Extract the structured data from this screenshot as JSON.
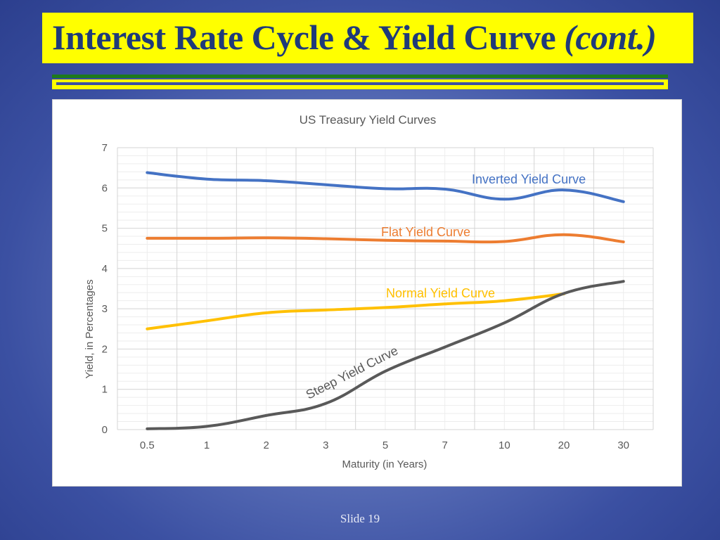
{
  "slide": {
    "title_main": "Interest Rate Cycle & Yield Curve ",
    "title_italic": "(cont.)",
    "slide_number": "Slide 19"
  },
  "colors": {
    "title_bg": "#ffff00",
    "title_text": "#1f3a7a",
    "inverted": "#4472c4",
    "flat": "#ed7d31",
    "normal": "#ffc000",
    "steep": "#595959"
  },
  "chart_data": {
    "type": "line",
    "title": "US Treasury Yield Curves",
    "xlabel": "Maturity  (in Years)",
    "ylabel": "Yield, in Percentages",
    "categories": [
      "0.5",
      "1",
      "2",
      "3",
      "5",
      "7",
      "10",
      "20",
      "30"
    ],
    "ylim": [
      0,
      7
    ],
    "yticks": [
      "0",
      "1",
      "2",
      "3",
      "4",
      "5",
      "6",
      "7"
    ],
    "grid": true,
    "series": [
      {
        "name": "Inverted Yield Curve",
        "color": "#4472c4",
        "values": [
          6.38,
          6.22,
          6.18,
          6.08,
          5.98,
          5.97,
          5.72,
          5.95,
          5.66
        ]
      },
      {
        "name": "Flat Yield Curve",
        "color": "#ed7d31",
        "values": [
          4.75,
          4.75,
          4.76,
          4.74,
          4.7,
          4.68,
          4.67,
          4.84,
          4.66
        ]
      },
      {
        "name": "Normal Yield Curve",
        "color": "#ffc000",
        "values": [
          2.5,
          2.7,
          2.9,
          2.97,
          3.03,
          3.12,
          3.2,
          3.37,
          null
        ]
      },
      {
        "name": "Steep Yield Curve",
        "color": "#595959",
        "values": [
          0.02,
          0.08,
          0.35,
          0.65,
          1.45,
          2.05,
          2.65,
          3.38,
          3.68
        ]
      }
    ]
  }
}
